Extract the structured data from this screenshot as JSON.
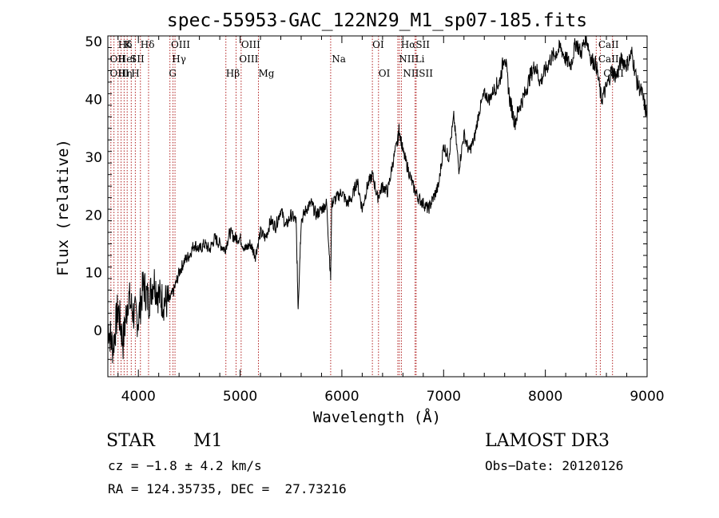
{
  "chart_data": {
    "type": "line",
    "title": "spec-55953-GAC_122N29_M1_sp07-185.fits",
    "xlabel": "Wavelength (Å)",
    "ylabel": "Flux (relative)",
    "xlim": [
      3700,
      9000
    ],
    "ylim": [
      -8,
      51
    ],
    "xticks": [
      4000,
      5000,
      6000,
      7000,
      8000,
      9000
    ],
    "yticks": [
      0,
      10,
      20,
      30,
      40,
      50
    ],
    "grid": false,
    "series": [
      {
        "x": [
          3700,
          3750,
          3800,
          3850,
          3900,
          3950,
          4000,
          4050,
          4100,
          4150,
          4200,
          4250,
          4300,
          4350,
          4400,
          4450,
          4500,
          4550,
          4600,
          4650,
          4700,
          4750,
          4800,
          4850,
          4900,
          4950,
          5000,
          5050,
          5100,
          5150,
          5200,
          5250,
          5300,
          5350,
          5400,
          5450,
          5500,
          5550,
          5570,
          5600,
          5650,
          5700,
          5750,
          5800,
          5850,
          5890,
          5900,
          5950,
          6000,
          6050,
          6100,
          6150,
          6200,
          6250,
          6300,
          6350,
          6400,
          6450,
          6500,
          6550,
          6563,
          6600,
          6650,
          6700,
          6750,
          6800,
          6850,
          6900,
          6950,
          7000,
          7050,
          7100,
          7150,
          7200,
          7250,
          7300,
          7350,
          7400,
          7450,
          7500,
          7550,
          7600,
          7650,
          7700,
          7750,
          7800,
          7850,
          7900,
          7950,
          8000,
          8050,
          8100,
          8150,
          8200,
          8250,
          8300,
          8350,
          8400,
          8450,
          8500,
          8550,
          8600,
          8650,
          8700,
          8750,
          8800,
          8850,
          8900,
          8950,
          9000
        ],
        "values": [
          1,
          -3,
          4,
          -2,
          6,
          3,
          2,
          8,
          5,
          9,
          6,
          5,
          5,
          7,
          10,
          12,
          13,
          15,
          14,
          15,
          14,
          16,
          15,
          14,
          17,
          16,
          16,
          14,
          15,
          13,
          17,
          16,
          19,
          18,
          21,
          18,
          20,
          19,
          4,
          19,
          21,
          22,
          20,
          21,
          22,
          9,
          22,
          23,
          24,
          22,
          23,
          26,
          21,
          25,
          27,
          23,
          25,
          24,
          29,
          33,
          35,
          31,
          28,
          25,
          23,
          22,
          21,
          23,
          25,
          32,
          30,
          37,
          28,
          34,
          31,
          33,
          38,
          41,
          40,
          42,
          43,
          48,
          40,
          36,
          39,
          41,
          44,
          46,
          43,
          45,
          47,
          48,
          49,
          47,
          46,
          50,
          48,
          51,
          47,
          46,
          40,
          42,
          45,
          44,
          47,
          46,
          48,
          43,
          41,
          37
        ]
      }
    ],
    "lines": [
      {
        "label": "Hδ",
        "x": 3800,
        "row": 0
      },
      {
        "label": "K",
        "x": 3860,
        "row": 0
      },
      {
        "label": "Hδ",
        "x": 4020,
        "row": 0
      },
      {
        "label": "OIII",
        "x": 4320,
        "row": 0
      },
      {
        "label": "OIII",
        "x": 5010,
        "row": 0
      },
      {
        "label": "OI",
        "x": 6300,
        "row": 0
      },
      {
        "label": "HαSII",
        "x": 6580,
        "row": 0
      },
      {
        "label": "CaII",
        "x": 8520,
        "row": 0
      },
      {
        "label": "OII",
        "x": 3720,
        "row": 1
      },
      {
        "label": "HeI",
        "x": 3800,
        "row": 1
      },
      {
        "label": "SII",
        "x": 3920,
        "row": 1
      },
      {
        "label": "Hγ",
        "x": 4330,
        "row": 1
      },
      {
        "label": "OIII",
        "x": 4990,
        "row": 1
      },
      {
        "label": "Na",
        "x": 5900,
        "row": 1
      },
      {
        "label": "NII",
        "x": 6560,
        "row": 1
      },
      {
        "label": "Li",
        "x": 6720,
        "row": 1
      },
      {
        "label": "CaII",
        "x": 8520,
        "row": 1
      },
      {
        "label": "OIII",
        "x": 3720,
        "row": 2
      },
      {
        "label": "Hη",
        "x": 3800,
        "row": 2
      },
      {
        "label": "H",
        "x": 3930,
        "row": 2
      },
      {
        "label": "G",
        "x": 4300,
        "row": 2
      },
      {
        "label": "Hβ",
        "x": 4860,
        "row": 2
      },
      {
        "label": "Mg",
        "x": 5180,
        "row": 2
      },
      {
        "label": "OI",
        "x": 6360,
        "row": 2
      },
      {
        "label": "NIISII",
        "x": 6600,
        "row": 2
      },
      {
        "label": "CaII",
        "x": 8570,
        "row": 2
      }
    ],
    "markers": [
      3730,
      3760,
      3800,
      3830,
      3860,
      3890,
      3930,
      3970,
      4020,
      4100,
      4310,
      4340,
      4360,
      4860,
      4960,
      5010,
      5180,
      5890,
      6300,
      6360,
      6550,
      6565,
      6585,
      6720,
      6730,
      8500,
      8540,
      8660
    ]
  },
  "info": {
    "object_class": "STAR",
    "subclass": "M1",
    "survey": "LAMOST DR3",
    "cz": "cz = −1.8 ± 4.2 km/s",
    "obs_date": "Obs−Date: 20120126",
    "coords": "RA = 124.35735, DEC =  27.73216"
  },
  "colors": {
    "marker_line": "#b22222",
    "spectrum": "#000000",
    "axes": "#000000"
  }
}
